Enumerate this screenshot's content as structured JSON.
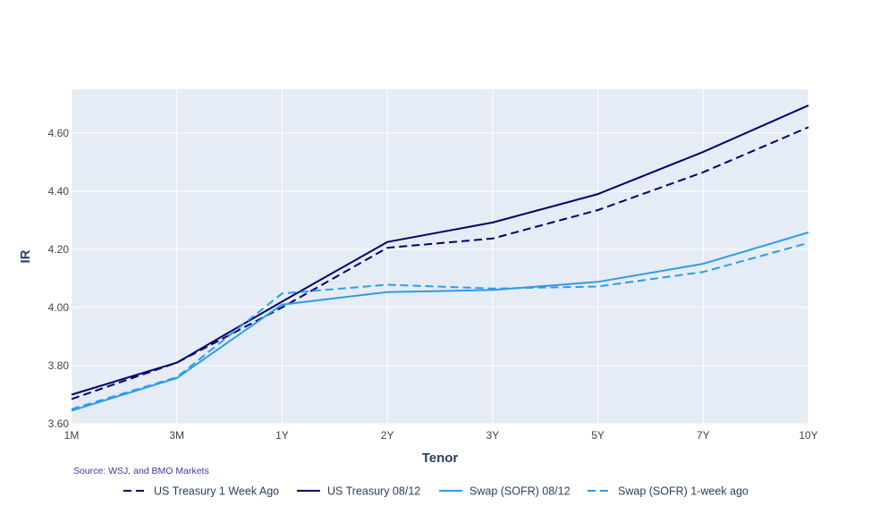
{
  "source_note": "Source: WSJ, and BMO Markets",
  "chart_data": {
    "type": "line",
    "title": "",
    "xlabel": "Tenor",
    "ylabel": "IR",
    "categories": [
      "1M",
      "3M",
      "1Y",
      "2Y",
      "3Y",
      "5Y",
      "7Y",
      "10Y"
    ],
    "ylim": [
      3.6,
      4.75
    ],
    "yticks": [
      "3.60",
      "3.80",
      "4.00",
      "4.20",
      "4.40",
      "4.60"
    ],
    "yticks_values": [
      3.6,
      3.8,
      4.0,
      4.2,
      4.4,
      4.6
    ],
    "grid": true,
    "legend_position": "bottom",
    "plot_background": "#e5ecf6",
    "series": [
      {
        "name": "US Treasury 1 Week Ago",
        "color": "#00006e",
        "dash": "dashed",
        "values": [
          3.685,
          3.81,
          4.0,
          4.205,
          4.237,
          4.335,
          4.465,
          4.62
        ]
      },
      {
        "name": "US Treasury 08/12",
        "color": "#00006e",
        "dash": "solid",
        "values": [
          3.7,
          3.81,
          4.02,
          4.225,
          4.292,
          4.39,
          4.535,
          4.695
        ]
      },
      {
        "name": "Swap (SOFR) 08/12",
        "color": "#2e9be8",
        "dash": "solid",
        "values": [
          3.645,
          3.757,
          4.01,
          4.053,
          4.06,
          4.088,
          4.15,
          4.258
        ]
      },
      {
        "name": "Swap (SOFR) 1-week ago",
        "color": "#2e9be8",
        "dash": "dashed",
        "values": [
          3.65,
          3.76,
          4.048,
          4.078,
          4.065,
          4.072,
          4.122,
          4.222
        ]
      }
    ]
  }
}
